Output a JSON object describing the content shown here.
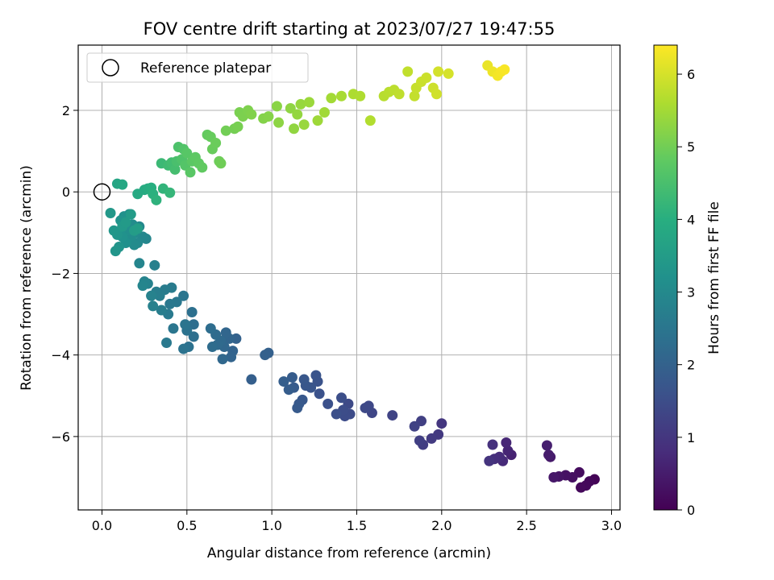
{
  "chart_data": {
    "type": "scatter",
    "title": "FOV centre drift starting at 2023/07/27 19:47:55",
    "xlabel": "Angular distance from reference (arcmin)",
    "ylabel": "Rotation from reference (arcmin)",
    "xlim": [
      -0.14,
      3.05
    ],
    "ylim": [
      -7.8,
      3.6
    ],
    "xticks": [
      "0.0",
      "0.5",
      "1.0",
      "1.5",
      "2.0",
      "2.5",
      "3.0"
    ],
    "yticks": [
      "−6",
      "−4",
      "−2",
      "0",
      "2"
    ],
    "grid": true,
    "colormap": "viridis",
    "colorbar": {
      "label": "Hours from first FF file",
      "range": [
        0,
        6.4
      ],
      "ticks": [
        "0",
        "1",
        "2",
        "3",
        "4",
        "5",
        "6"
      ]
    },
    "legend": {
      "position": "top-left",
      "entries": [
        {
          "label": "Reference platepar",
          "marker": "open-circle",
          "x": 0.0,
          "y": 0.0
        }
      ]
    },
    "points_columns": [
      "x",
      "y",
      "hours"
    ],
    "points": [
      [
        2.9,
        -7.05,
        0.05
      ],
      [
        2.87,
        -7.1,
        0.1
      ],
      [
        2.85,
        -7.2,
        0.12
      ],
      [
        2.82,
        -7.25,
        0.15
      ],
      [
        2.81,
        -6.88,
        0.2
      ],
      [
        2.77,
        -7.0,
        0.25
      ],
      [
        2.73,
        -6.95,
        0.3
      ],
      [
        2.69,
        -6.98,
        0.35
      ],
      [
        2.66,
        -7.0,
        0.4
      ],
      [
        2.64,
        -6.5,
        0.45
      ],
      [
        2.63,
        -6.45,
        0.5
      ],
      [
        2.62,
        -6.22,
        0.55
      ],
      [
        2.41,
        -6.45,
        0.6
      ],
      [
        2.39,
        -6.35,
        0.65
      ],
      [
        2.38,
        -6.15,
        0.7
      ],
      [
        2.36,
        -6.6,
        0.75
      ],
      [
        2.34,
        -6.5,
        0.8
      ],
      [
        2.31,
        -6.55,
        0.85
      ],
      [
        2.3,
        -6.2,
        0.9
      ],
      [
        2.28,
        -6.6,
        0.95
      ],
      [
        2.0,
        -5.68,
        1.0
      ],
      [
        1.98,
        -5.95,
        1.05
      ],
      [
        1.94,
        -6.05,
        1.1
      ],
      [
        1.89,
        -6.2,
        1.15
      ],
      [
        1.87,
        -6.1,
        1.2
      ],
      [
        1.88,
        -5.62,
        1.22
      ],
      [
        1.84,
        -5.75,
        1.25
      ],
      [
        1.71,
        -5.48,
        1.3
      ],
      [
        1.59,
        -5.42,
        1.35
      ],
      [
        1.57,
        -5.25,
        1.38
      ],
      [
        1.55,
        -5.3,
        1.4
      ],
      [
        1.45,
        -5.2,
        1.42
      ],
      [
        1.46,
        -5.45,
        1.45
      ],
      [
        1.43,
        -5.5,
        1.48
      ],
      [
        1.42,
        -5.35,
        1.5
      ],
      [
        1.41,
        -5.05,
        1.52
      ],
      [
        1.38,
        -5.45,
        1.55
      ],
      [
        1.33,
        -5.2,
        1.58
      ],
      [
        1.28,
        -4.95,
        1.6
      ],
      [
        1.27,
        -4.65,
        1.62
      ],
      [
        1.26,
        -4.5,
        1.65
      ],
      [
        1.23,
        -4.8,
        1.68
      ],
      [
        1.2,
        -4.75,
        1.7
      ],
      [
        1.19,
        -4.6,
        1.72
      ],
      [
        1.18,
        -5.1,
        1.75
      ],
      [
        1.16,
        -5.2,
        1.78
      ],
      [
        1.15,
        -5.3,
        1.8
      ],
      [
        1.13,
        -4.8,
        1.82
      ],
      [
        1.12,
        -4.55,
        1.85
      ],
      [
        1.1,
        -4.85,
        1.88
      ],
      [
        1.07,
        -4.65,
        1.9
      ],
      [
        0.88,
        -4.6,
        1.92
      ],
      [
        0.98,
        -3.95,
        1.95
      ],
      [
        0.96,
        -4.0,
        1.97
      ],
      [
        0.79,
        -3.6,
        2.0
      ],
      [
        0.77,
        -3.9,
        2.02
      ],
      [
        0.76,
        -4.05,
        2.05
      ],
      [
        0.75,
        -3.6,
        2.08
      ],
      [
        0.73,
        -3.45,
        2.1
      ],
      [
        0.72,
        -3.8,
        2.12
      ],
      [
        0.71,
        -4.1,
        2.15
      ],
      [
        0.7,
        -3.65,
        2.18
      ],
      [
        0.68,
        -3.75,
        2.2
      ],
      [
        0.67,
        -3.5,
        2.22
      ],
      [
        0.65,
        -3.8,
        2.25
      ],
      [
        0.64,
        -3.35,
        2.28
      ],
      [
        0.54,
        -3.25,
        2.3
      ],
      [
        0.54,
        -3.55,
        2.32
      ],
      [
        0.53,
        -2.95,
        2.35
      ],
      [
        0.51,
        -3.8,
        2.38
      ],
      [
        0.5,
        -3.4,
        2.4
      ],
      [
        0.48,
        -3.85,
        2.42
      ],
      [
        0.49,
        -3.25,
        2.45
      ],
      [
        0.48,
        -2.55,
        2.48
      ],
      [
        0.42,
        -3.35,
        2.5
      ],
      [
        0.44,
        -2.7,
        2.52
      ],
      [
        0.4,
        -2.75,
        2.55
      ],
      [
        0.38,
        -3.7,
        2.58
      ],
      [
        0.39,
        -3.0,
        2.6
      ],
      [
        0.41,
        -2.35,
        2.62
      ],
      [
        0.37,
        -2.4,
        2.65
      ],
      [
        0.35,
        -2.9,
        2.68
      ],
      [
        0.34,
        -2.55,
        2.7
      ],
      [
        0.32,
        -2.45,
        2.72
      ],
      [
        0.31,
        -1.8,
        2.75
      ],
      [
        0.3,
        -2.8,
        2.78
      ],
      [
        0.29,
        -2.55,
        2.8
      ],
      [
        0.27,
        -2.25,
        2.82
      ],
      [
        0.25,
        -2.2,
        2.85
      ],
      [
        0.24,
        -2.3,
        2.88
      ],
      [
        0.22,
        -1.75,
        2.9
      ],
      [
        0.26,
        -1.15,
        2.92
      ],
      [
        0.24,
        -1.1,
        2.95
      ],
      [
        0.22,
        -0.85,
        2.98
      ],
      [
        0.21,
        -1.25,
        3.0
      ],
      [
        0.2,
        -1.0,
        3.02
      ],
      [
        0.19,
        -1.3,
        3.05
      ],
      [
        0.18,
        -0.8,
        3.08
      ],
      [
        0.17,
        -1.1,
        3.1
      ],
      [
        0.16,
        -0.55,
        3.12
      ],
      [
        0.15,
        -0.95,
        3.15
      ],
      [
        0.14,
        -1.25,
        3.18
      ],
      [
        0.13,
        -0.6,
        3.2
      ],
      [
        0.12,
        -1.1,
        3.22
      ],
      [
        0.11,
        -0.7,
        3.25
      ],
      [
        0.1,
        -1.35,
        3.28
      ],
      [
        0.09,
        -1.05,
        3.3
      ],
      [
        0.08,
        -1.45,
        3.32
      ],
      [
        0.07,
        -0.95,
        3.35
      ],
      [
        0.05,
        -0.52,
        3.4
      ],
      [
        0.12,
        -0.85,
        3.42
      ],
      [
        0.14,
        -0.75,
        3.45
      ],
      [
        0.17,
        -0.55,
        3.48
      ],
      [
        0.19,
        -0.95,
        3.5
      ],
      [
        0.21,
        -0.9,
        3.52
      ],
      [
        0.09,
        0.2,
        3.75
      ],
      [
        0.12,
        0.18,
        3.8
      ],
      [
        0.21,
        -0.05,
        3.85
      ],
      [
        0.25,
        0.05,
        3.9
      ],
      [
        0.27,
        0.08,
        3.95
      ],
      [
        0.29,
        0.1,
        4.0
      ],
      [
        0.3,
        -0.05,
        4.05
      ],
      [
        0.32,
        -0.2,
        4.1
      ],
      [
        0.36,
        0.08,
        4.15
      ],
      [
        0.4,
        -0.02,
        4.2
      ],
      [
        0.35,
        0.7,
        4.3
      ],
      [
        0.39,
        0.65,
        4.35
      ],
      [
        0.41,
        0.72,
        4.4
      ],
      [
        0.43,
        0.55,
        4.45
      ],
      [
        0.44,
        0.75,
        4.5
      ],
      [
        0.45,
        1.1,
        4.55
      ],
      [
        0.47,
        0.8,
        4.6
      ],
      [
        0.48,
        1.05,
        4.62
      ],
      [
        0.49,
        0.65,
        4.65
      ],
      [
        0.5,
        0.95,
        4.7
      ],
      [
        0.52,
        0.48,
        4.72
      ],
      [
        0.53,
        0.75,
        4.75
      ],
      [
        0.55,
        0.85,
        4.78
      ],
      [
        0.57,
        0.7,
        4.8
      ],
      [
        0.59,
        0.6,
        4.82
      ],
      [
        0.62,
        1.4,
        4.85
      ],
      [
        0.64,
        1.35,
        4.88
      ],
      [
        0.65,
        1.05,
        4.9
      ],
      [
        0.67,
        1.2,
        4.92
      ],
      [
        0.69,
        0.75,
        4.95
      ],
      [
        0.7,
        0.7,
        4.97
      ],
      [
        0.73,
        1.5,
        5.0
      ],
      [
        0.78,
        1.55,
        5.02
      ],
      [
        0.8,
        1.6,
        5.05
      ],
      [
        0.81,
        1.95,
        5.08
      ],
      [
        0.83,
        1.85,
        5.1
      ],
      [
        0.86,
        2.0,
        5.12
      ],
      [
        0.88,
        1.9,
        5.15
      ],
      [
        0.95,
        1.8,
        5.18
      ],
      [
        0.98,
        1.85,
        5.2
      ],
      [
        1.03,
        2.1,
        5.25
      ],
      [
        1.04,
        1.7,
        5.28
      ],
      [
        1.11,
        2.05,
        5.3
      ],
      [
        1.13,
        1.55,
        5.32
      ],
      [
        1.15,
        1.9,
        5.35
      ],
      [
        1.17,
        2.15,
        5.38
      ],
      [
        1.19,
        1.65,
        5.4
      ],
      [
        1.22,
        2.2,
        5.42
      ],
      [
        1.27,
        1.75,
        5.45
      ],
      [
        1.31,
        1.95,
        5.48
      ],
      [
        1.35,
        2.3,
        5.5
      ],
      [
        1.41,
        2.35,
        5.55
      ],
      [
        1.48,
        2.4,
        5.6
      ],
      [
        1.52,
        2.35,
        5.62
      ],
      [
        1.58,
        1.75,
        5.65
      ],
      [
        1.66,
        2.35,
        5.7
      ],
      [
        1.69,
        2.45,
        5.72
      ],
      [
        1.72,
        2.5,
        5.75
      ],
      [
        1.75,
        2.4,
        5.78
      ],
      [
        1.8,
        2.95,
        5.8
      ],
      [
        1.84,
        2.35,
        5.82
      ],
      [
        1.85,
        2.55,
        5.85
      ],
      [
        1.88,
        2.7,
        5.88
      ],
      [
        1.91,
        2.8,
        5.9
      ],
      [
        1.95,
        2.55,
        5.92
      ],
      [
        1.97,
        2.4,
        5.95
      ],
      [
        1.98,
        2.95,
        5.98
      ],
      [
        2.04,
        2.9,
        6.0
      ],
      [
        2.27,
        3.1,
        6.2
      ],
      [
        2.3,
        2.95,
        6.25
      ],
      [
        2.33,
        2.85,
        6.3
      ],
      [
        2.35,
        2.95,
        6.32
      ],
      [
        2.37,
        3.0,
        6.35
      ]
    ]
  }
}
